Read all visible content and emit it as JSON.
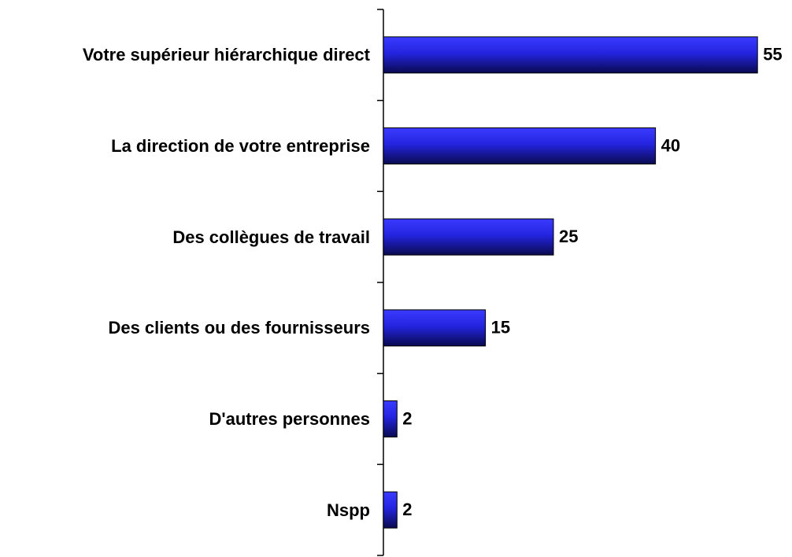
{
  "chart_data": {
    "type": "bar",
    "orientation": "horizontal",
    "categories": [
      "Votre supérieur hiérarchique direct",
      "La direction de votre entreprise",
      "Des collègues de travail",
      "Des clients ou des fournisseurs",
      "D'autres personnes",
      "Nspp"
    ],
    "values": [
      55,
      40,
      25,
      15,
      2,
      2
    ],
    "color": "#2a2aff"
  }
}
